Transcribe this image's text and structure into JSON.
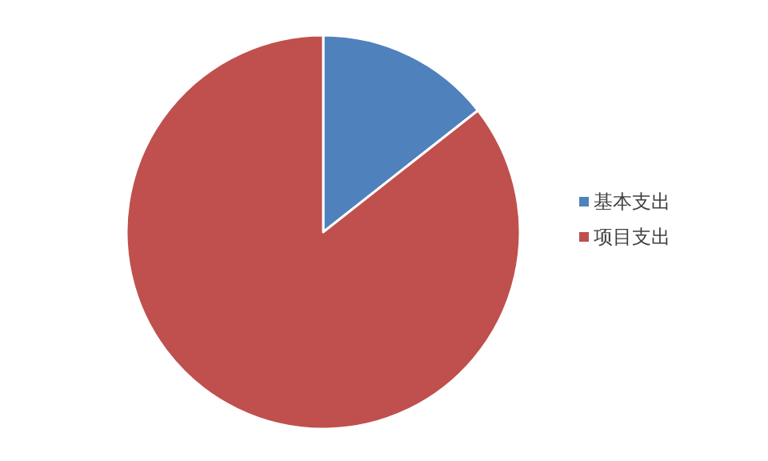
{
  "chart_data": {
    "type": "pie",
    "categories": [
      "基本支出",
      "项目支出"
    ],
    "values": [
      14.4,
      85.6
    ],
    "colors": [
      "#4f81bd",
      "#c0504d"
    ],
    "legend": "right"
  }
}
